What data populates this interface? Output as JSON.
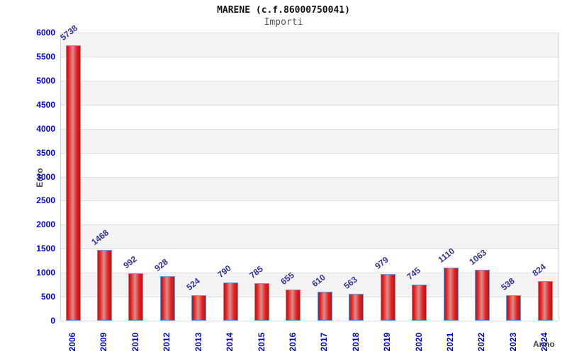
{
  "chart_data": {
    "type": "bar",
    "title": "MARENE (c.f.86000750041)",
    "subtitle": "Importi",
    "ylabel": "Euro",
    "xlabel": "Anno",
    "categories": [
      "2006",
      "2009",
      "2010",
      "2012",
      "2013",
      "2014",
      "2015",
      "2016",
      "2017",
      "2018",
      "2019",
      "2020",
      "2021",
      "2022",
      "2023",
      "2024"
    ],
    "values": [
      5738,
      1468,
      992,
      928,
      524,
      790,
      785,
      655,
      610,
      563,
      979,
      745,
      1110,
      1063,
      538,
      824
    ],
    "ylim": [
      0,
      6000
    ],
    "ytick_step": 500,
    "legend": "none",
    "grid": "horizontal-bands",
    "colors": {
      "bar_dark": "#b81414",
      "bar_fill": "#e62222",
      "bar_highlight": "#d98e8e",
      "bar_border": "#62a0e0",
      "tick_label": "#0000cc",
      "value_label": "#333399",
      "band_gray": "#f3f3f3",
      "band_white": "#ffffff",
      "gridline": "#dedede",
      "axis_text": "#444444",
      "title_color": "#111111",
      "subtitle_color": "#555555"
    }
  }
}
